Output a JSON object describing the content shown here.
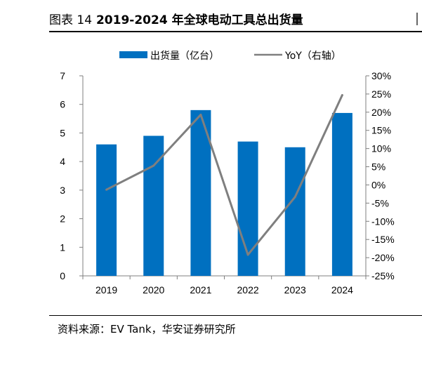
{
  "figure": {
    "label": "图表 14",
    "title": "2019-2024 年全球电动工具总出货量",
    "source": "资料来源：EV Tank，华安证券研究所"
  },
  "colors": {
    "bar": "#0070C0",
    "line": "#7F7F7F",
    "axis": "#7F7F7F"
  },
  "chart_data": {
    "type": "bar",
    "categories": [
      "2019",
      "2020",
      "2021",
      "2022",
      "2023",
      "2024"
    ],
    "series": [
      {
        "name": "出货量（亿台）",
        "type": "bar",
        "axis": "left",
        "values": [
          4.6,
          4.9,
          5.8,
          4.7,
          4.5,
          5.7
        ]
      },
      {
        "name": "YoY（右轴）",
        "type": "line",
        "axis": "right",
        "values": [
          -1.3,
          5.3,
          19.3,
          -19.2,
          -3.3,
          24.7
        ]
      }
    ],
    "ylim": [
      0,
      7
    ],
    "yticks": [
      "0",
      "1",
      "2",
      "3",
      "4",
      "5",
      "6",
      "7"
    ],
    "y2lim": [
      -25,
      30
    ],
    "y2ticks": [
      "-25%",
      "-20%",
      "-15%",
      "-10%",
      "-5%",
      "0%",
      "5%",
      "10%",
      "15%",
      "20%",
      "25%",
      "30%"
    ],
    "legend_position": "top",
    "grid": false
  }
}
